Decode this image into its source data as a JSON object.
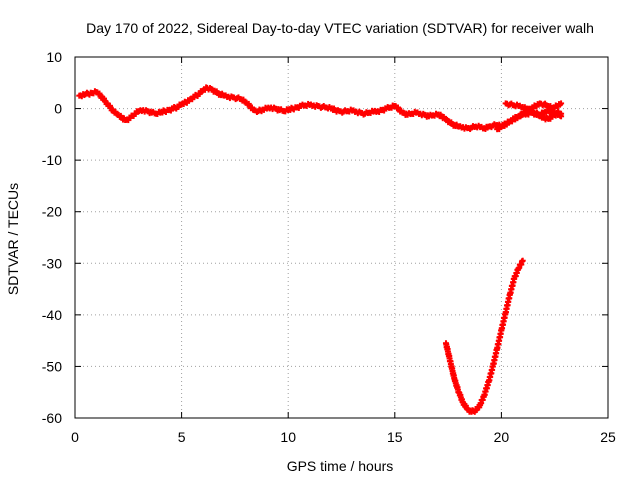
{
  "chart_data": {
    "type": "scatter",
    "title": "Day 170 of 2022, Sidereal Day-to-day VTEC variation (SDTVAR) for receiver walh",
    "xlabel": "GPS time / hours",
    "ylabel": "SDTVAR / TECUs",
    "xlim": [
      0,
      25
    ],
    "ylim": [
      -60,
      10
    ],
    "xticks": [
      0,
      5,
      10,
      15,
      20,
      25
    ],
    "yticks": [
      10,
      0,
      -10,
      -20,
      -30,
      -40,
      -50,
      -60
    ],
    "grid": true,
    "marker_color": "#ff0000",
    "series": [
      {
        "x": [
          0.2,
          0.5,
          0.8,
          1.0,
          1.2,
          1.4,
          1.6,
          1.8,
          2.0,
          2.2,
          2.4,
          2.6,
          2.8,
          3.0,
          3.2,
          3.4,
          3.6,
          3.8,
          4.0,
          4.2,
          4.4,
          4.6,
          4.8,
          5.0,
          5.2,
          5.4,
          5.6,
          5.8,
          6.0,
          6.2,
          6.4,
          6.6,
          6.8,
          7.0,
          7.2,
          7.4,
          7.6,
          7.8,
          8.0,
          8.2,
          8.4,
          8.6,
          8.8,
          9.0,
          9.2,
          9.4,
          9.6,
          9.8,
          10.0,
          10.2,
          10.4,
          10.6,
          10.8,
          11.0,
          11.2,
          11.4,
          11.6,
          11.8,
          12.0,
          12.2,
          12.4,
          12.6,
          12.8,
          13.0,
          13.2,
          13.4,
          13.6,
          13.8,
          14.0,
          14.2,
          14.4,
          14.6,
          14.8,
          15.0,
          15.2,
          15.4,
          15.6,
          15.8,
          16.0,
          16.2,
          16.4,
          16.6,
          16.8,
          17.0,
          17.2,
          17.4,
          17.6,
          17.8,
          18.0,
          18.2,
          18.4,
          18.6,
          18.8,
          19.0,
          19.2,
          19.4,
          19.6,
          19.8,
          20.0,
          20.2,
          20.4,
          20.6,
          20.8,
          21.0,
          21.2,
          21.4,
          21.6,
          21.8,
          22.0,
          22.2,
          22.4,
          22.6,
          22.8
        ],
        "y": [
          2.5,
          2.8,
          3.0,
          3.2,
          2.5,
          1.5,
          0.5,
          -0.5,
          -1.2,
          -1.8,
          -2.2,
          -1.8,
          -1.0,
          -0.5,
          -0.3,
          -0.5,
          -0.8,
          -1.0,
          -0.8,
          -0.5,
          -0.3,
          0.0,
          0.3,
          0.8,
          1.2,
          1.8,
          2.3,
          2.8,
          3.5,
          4.0,
          3.8,
          3.2,
          2.8,
          2.5,
          2.3,
          2.2,
          2.0,
          1.8,
          1.2,
          0.5,
          -0.3,
          -0.5,
          -0.2,
          0.0,
          0.2,
          0.0,
          -0.3,
          -0.5,
          -0.3,
          0.0,
          0.2,
          0.5,
          0.6,
          0.7,
          0.6,
          0.5,
          0.3,
          0.2,
          0.0,
          -0.3,
          -0.5,
          -0.6,
          -0.5,
          -0.4,
          -0.6,
          -0.8,
          -1.0,
          -0.8,
          -0.6,
          -0.5,
          -0.3,
          0.0,
          0.2,
          0.5,
          -0.2,
          -0.8,
          -1.2,
          -1.0,
          -0.8,
          -1.0,
          -1.2,
          -1.5,
          -1.3,
          -1.2,
          -1.5,
          -2.0,
          -2.8,
          -3.2,
          -3.5,
          -3.6,
          -3.8,
          -3.7,
          -3.5,
          -3.6,
          -3.8,
          -3.5,
          -3.3,
          -3.2,
          -3.5,
          -3.0,
          -2.5,
          -2.0,
          -1.5,
          -1.2,
          -1.0,
          -0.8,
          -1.0,
          -1.2,
          -0.8,
          -0.5,
          -0.6,
          -0.8,
          -1.0
        ]
      },
      {
        "x": [
          17.4,
          17.6,
          17.8,
          18.0,
          18.2,
          18.4,
          18.6,
          18.8,
          19.0,
          19.2,
          19.4,
          19.6,
          19.8,
          20.0,
          20.2,
          20.4,
          20.6,
          20.8,
          21.0
        ],
        "y": [
          -45.5,
          -49.0,
          -52.5,
          -55.0,
          -57.0,
          -58.3,
          -58.8,
          -58.5,
          -57.5,
          -55.5,
          -53.0,
          -50.0,
          -46.5,
          -43.0,
          -39.5,
          -36.0,
          -33.0,
          -31.0,
          -29.5
        ]
      },
      {
        "x": [
          19.8,
          20.0,
          20.2,
          20.4,
          20.6,
          20.8,
          21.0,
          21.2,
          21.4,
          21.6,
          21.8,
          22.0,
          22.2,
          22.4,
          22.6,
          22.8
        ],
        "y": [
          -4.0,
          -3.5,
          -3.0,
          -2.5,
          -2.0,
          -1.5,
          -1.0,
          -0.5,
          0.0,
          0.5,
          1.0,
          0.8,
          0.5,
          0.0,
          0.5,
          1.0
        ]
      },
      {
        "x": [
          20.2,
          20.4,
          20.6,
          20.8,
          21.0,
          21.2,
          21.4,
          21.6,
          21.8,
          22.0,
          22.2,
          22.4,
          22.6,
          22.8
        ],
        "y": [
          1.0,
          0.8,
          0.6,
          0.5,
          0.3,
          0.0,
          -0.5,
          -1.0,
          -1.5,
          -1.8,
          -2.0,
          -1.5,
          -1.0,
          -1.5
        ]
      }
    ]
  }
}
